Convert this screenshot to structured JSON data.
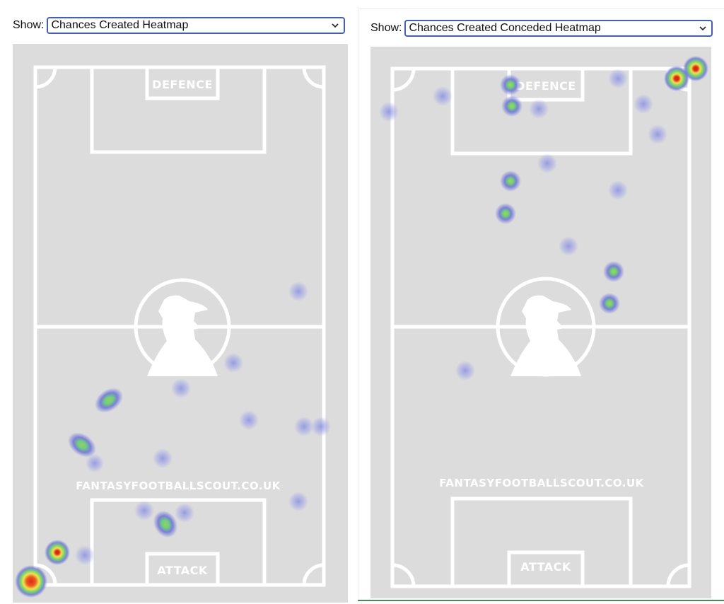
{
  "left_panel": {
    "show_label": "Show:",
    "selected": "Chances Created Heatmap",
    "defence_label": "DEFENCE",
    "attack_label": "ATTACK",
    "watermark": "FANTASYFOOTBALLSCOUT.CO.UK"
  },
  "right_panel": {
    "show_label": "Show:",
    "selected": "Chances Created Conceded Heatmap",
    "defence_label": "DEFENCE",
    "attack_label": "ATTACK",
    "watermark": "FANTASYFOOTBALLSCOUT.CO.UK"
  },
  "colors": {
    "pitch": "#dcdcdc",
    "lines": "#ffffff",
    "select_border": "#3d5fc7",
    "heat_low": "#6f76d9",
    "heat_mid": "#6fd66a",
    "heat_high": "#f2e24a",
    "heat_peak": "#e0261b"
  }
}
